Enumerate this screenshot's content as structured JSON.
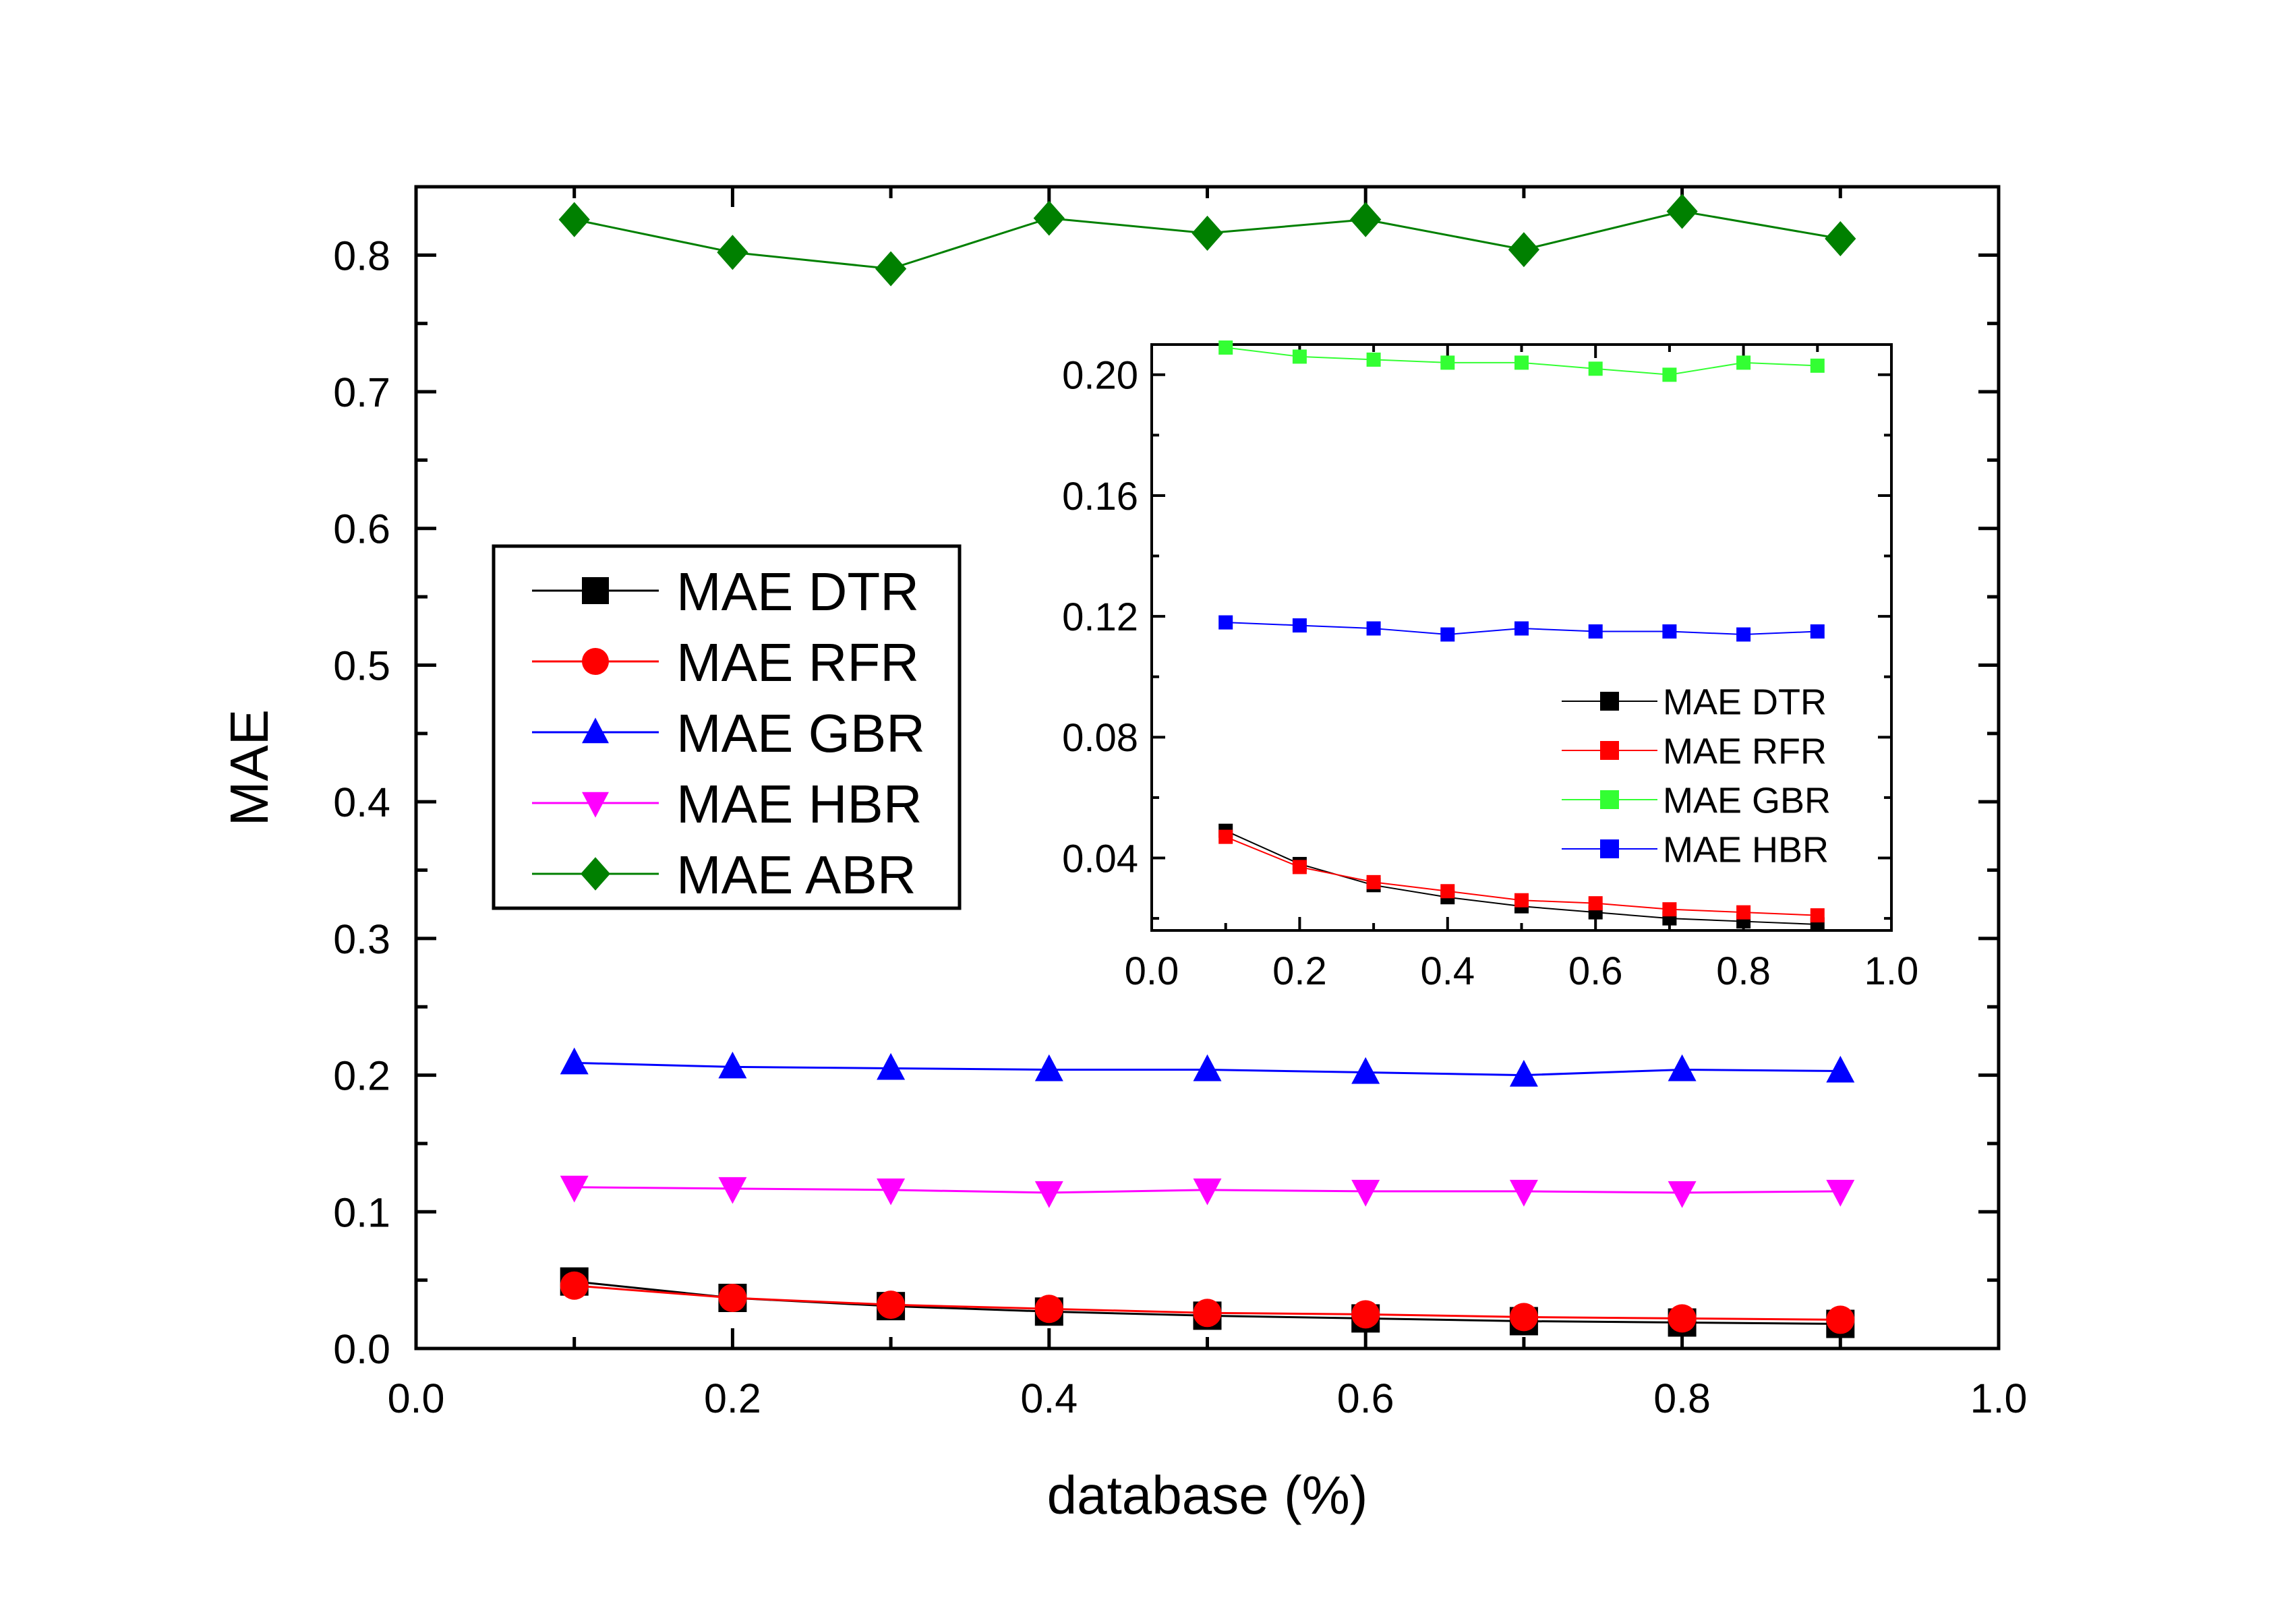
{
  "chart_data": [
    {
      "id": "main",
      "type": "line",
      "xlabel": "database (%)",
      "ylabel": "MAE",
      "xlim": [
        0.0,
        1.0
      ],
      "ylim": [
        0.0,
        0.85
      ],
      "x_ticks": [
        "0.0",
        "0.2",
        "0.4",
        "0.6",
        "0.8",
        "1.0"
      ],
      "y_ticks": [
        "0.0",
        "0.1",
        "0.2",
        "0.3",
        "0.4",
        "0.5",
        "0.6",
        "0.7",
        "0.8"
      ],
      "grid": false,
      "legend_position": "left-middle",
      "x": [
        0.1,
        0.2,
        0.3,
        0.4,
        0.5,
        0.6,
        0.7,
        0.8,
        0.9
      ],
      "series": [
        {
          "name": "MAE DTR",
          "color": "#000000",
          "marker": "square",
          "values": [
            0.049,
            0.037,
            0.031,
            0.027,
            0.024,
            0.022,
            0.02,
            0.019,
            0.018
          ]
        },
        {
          "name": "MAE RFR",
          "color": "#ff0000",
          "marker": "circle",
          "values": [
            0.046,
            0.037,
            0.032,
            0.029,
            0.026,
            0.025,
            0.023,
            0.022,
            0.021
          ]
        },
        {
          "name": "MAE GBR",
          "color": "#0000ff",
          "marker": "triangle-up",
          "values": [
            0.209,
            0.206,
            0.205,
            0.204,
            0.204,
            0.202,
            0.2,
            0.204,
            0.203
          ]
        },
        {
          "name": "MAE HBR",
          "color": "#ff00ff",
          "marker": "triangle-down",
          "values": [
            0.118,
            0.117,
            0.116,
            0.114,
            0.116,
            0.115,
            0.115,
            0.114,
            0.115
          ]
        },
        {
          "name": "MAE ABR",
          "color": "#008000",
          "marker": "diamond",
          "values": [
            0.826,
            0.802,
            0.79,
            0.827,
            0.816,
            0.826,
            0.804,
            0.832,
            0.812
          ]
        }
      ]
    },
    {
      "id": "inset",
      "type": "line",
      "xlabel": "",
      "ylabel": "",
      "xlim": [
        0.0,
        1.0
      ],
      "ylim": [
        0.016,
        0.21
      ],
      "x_ticks": [
        "0.0",
        "0.2",
        "0.4",
        "0.6",
        "0.8",
        "1.0"
      ],
      "y_ticks": [
        "0.04",
        "0.08",
        "0.12",
        "0.16",
        "0.20"
      ],
      "grid": false,
      "legend_position": "right-middle",
      "x": [
        0.1,
        0.2,
        0.3,
        0.4,
        0.5,
        0.6,
        0.7,
        0.8,
        0.9
      ],
      "series": [
        {
          "name": "MAE DTR",
          "color": "#000000",
          "marker": "square",
          "values": [
            0.049,
            0.038,
            0.031,
            0.027,
            0.024,
            0.022,
            0.02,
            0.019,
            0.018
          ]
        },
        {
          "name": "MAE RFR",
          "color": "#ff0000",
          "marker": "square",
          "values": [
            0.047,
            0.037,
            0.032,
            0.029,
            0.026,
            0.025,
            0.023,
            0.022,
            0.021
          ]
        },
        {
          "name": "MAE GBR",
          "color": "#33ff33",
          "marker": "square",
          "values": [
            0.209,
            0.206,
            0.205,
            0.204,
            0.204,
            0.202,
            0.2,
            0.204,
            0.203
          ]
        },
        {
          "name": "MAE HBR",
          "color": "#0000ff",
          "marker": "square",
          "values": [
            0.118,
            0.117,
            0.116,
            0.114,
            0.116,
            0.115,
            0.115,
            0.114,
            0.115
          ]
        }
      ]
    }
  ]
}
